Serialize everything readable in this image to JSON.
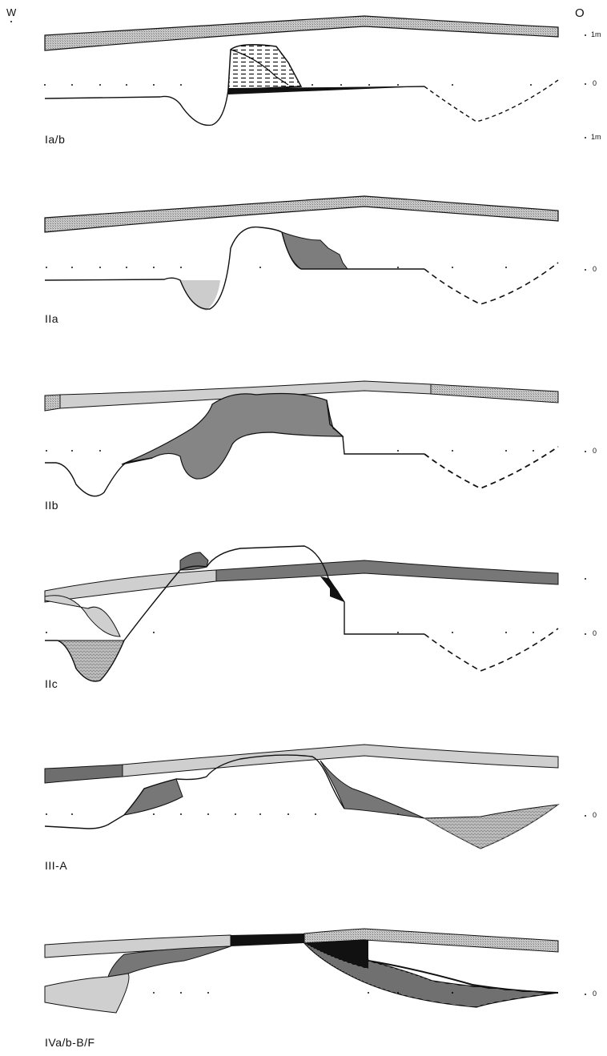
{
  "orientation": {
    "west": "W",
    "east": "O"
  },
  "scale": {
    "top": "1m",
    "zero": "0",
    "bottom": "1m"
  },
  "panels": [
    {
      "id": "Ia/b",
      "label": "Ia/b"
    },
    {
      "id": "IIa",
      "label": "IIa"
    },
    {
      "id": "IIb",
      "label": "IIb"
    },
    {
      "id": "IIc",
      "label": "IIc"
    },
    {
      "id": "III-A",
      "label": "III-A"
    },
    {
      "id": "IVa/b",
      "label": "IVa/b-B/F"
    }
  ],
  "colors": {
    "line": "#111111",
    "hatched_band": "#b5b5b5",
    "light_fill": "#cfcfcf",
    "mid_fill": "#8f8f8f",
    "dark_fill": "#6e6e6e",
    "black_fill": "#111111"
  }
}
